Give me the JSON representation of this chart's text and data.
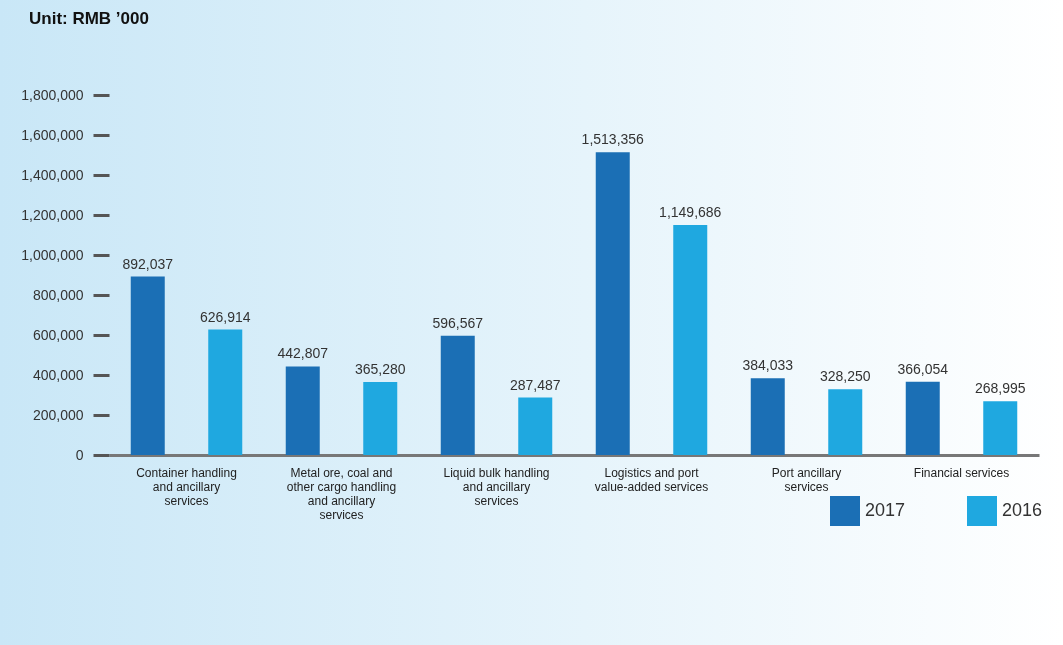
{
  "chart_data": {
    "type": "bar",
    "title": "Unit: RMB ’000",
    "categories": [
      "Container handling and ancillary services",
      "Metal ore, coal and other cargo handling and ancillary services",
      "Liquid bulk handling and ancillary services",
      "Logistics and port value-added services",
      "Port ancillary services",
      "Financial services"
    ],
    "series": [
      {
        "name": "2017",
        "color": "#1b6fb5",
        "values": [
          892037,
          442807,
          596567,
          1513356,
          384033,
          366054
        ],
        "value_labels": [
          "892,037",
          "442,807",
          "596,567",
          "1,513,356",
          "384,033",
          "366,054"
        ]
      },
      {
        "name": "2016",
        "color": "#1fa8e0",
        "values": [
          626914,
          365280,
          287487,
          1149686,
          328250,
          268995
        ],
        "value_labels": [
          "626,914",
          "365,280",
          "287,487",
          "1,149,686",
          "328,250",
          "268,995"
        ]
      }
    ],
    "ylim": [
      0,
      1800000
    ],
    "yticks": [
      0,
      {
        "value": 200000,
        "label": "200,000"
      },
      {
        "value": 400000,
        "label": "400,000"
      },
      {
        "value": 600000,
        "label": "600,000"
      },
      {
        "value": 800000,
        "label": "800,000"
      },
      {
        "value": 1000000,
        "label": "1,000,000"
      },
      {
        "value": 1200000,
        "label": "1,200,000"
      },
      {
        "value": 1400000,
        "label": "1,400,000"
      },
      {
        "value": 1600000,
        "label": "1,600,000"
      },
      {
        "value": 1800000,
        "label": "1,800,000"
      }
    ],
    "grid": false,
    "legend": "bottom right"
  }
}
